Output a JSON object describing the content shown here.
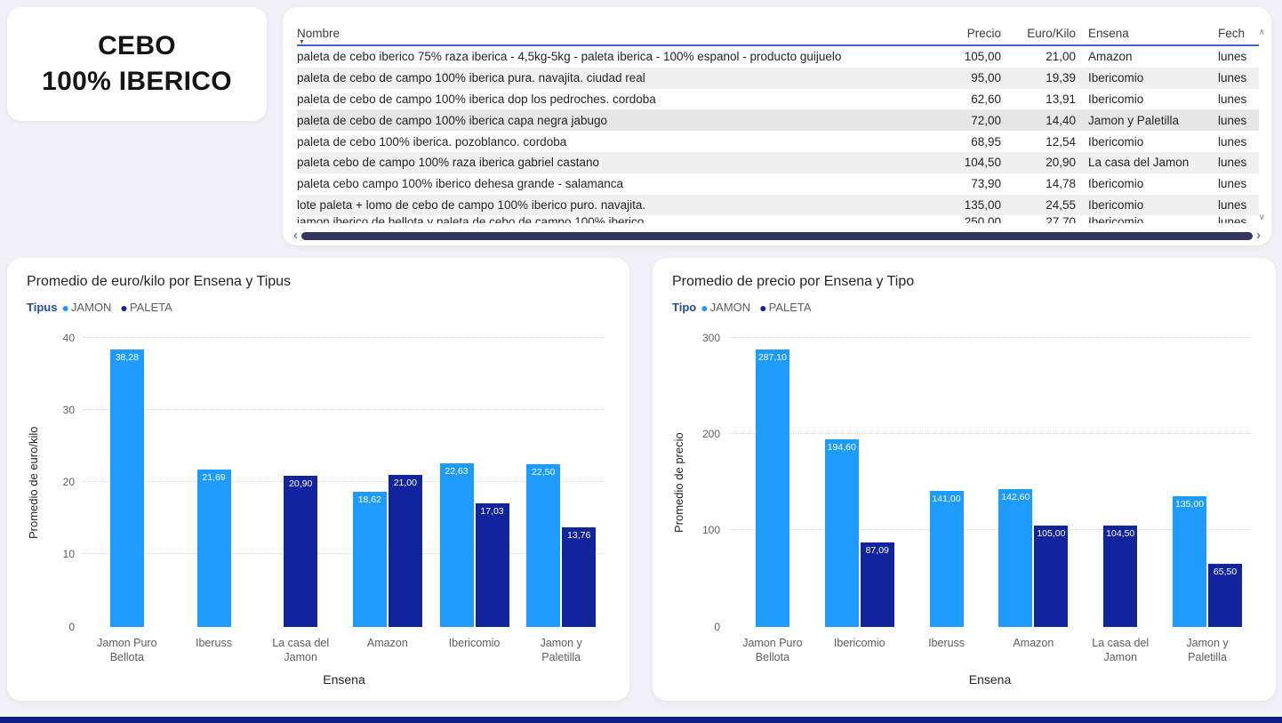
{
  "page": {
    "background": "#f2f1f7",
    "accent_bar_color": "#101d87"
  },
  "title_card": {
    "line1": "CEBO",
    "line2": "100% IBERICO"
  },
  "table": {
    "header": {
      "nombre": "Nombre",
      "precio": "Precio",
      "euro_kilo": "Euro/Kilo",
      "ensena": "Ensena",
      "fecha": "Fech"
    },
    "sort_icon": "▼",
    "rows": [
      {
        "nombre": "paleta de cebo iberico 75% raza iberica - 4,5kg-5kg - paleta iberica - 100% espanol - producto guijuelo",
        "precio": "105,00",
        "euro_kilo": "21,00",
        "ensena": "Amazon",
        "fecha": "lunes"
      },
      {
        "nombre": "paleta de cebo de campo 100% iberica pura. navajita. ciudad real",
        "precio": "95,00",
        "euro_kilo": "19,39",
        "ensena": "Ibericomio",
        "fecha": "lunes"
      },
      {
        "nombre": "paleta de cebo de campo 100% iberica dop los pedroches. cordoba",
        "precio": "62,60",
        "euro_kilo": "13,91",
        "ensena": "Ibericomio",
        "fecha": "lunes"
      },
      {
        "nombre": "paleta de cebo de campo 100% iberica capa negra jabugo",
        "precio": "72,00",
        "euro_kilo": "14,40",
        "ensena": "Jamon y Paletilla",
        "fecha": "lunes",
        "emphasis": true
      },
      {
        "nombre": "paleta de cebo 100% iberica. pozoblanco. cordoba",
        "precio": "68,95",
        "euro_kilo": "12,54",
        "ensena": "Ibericomio",
        "fecha": "lunes"
      },
      {
        "nombre": "paleta cebo de campo 100% raza iberica gabriel castano",
        "precio": "104,50",
        "euro_kilo": "20,90",
        "ensena": "La casa del Jamon",
        "fecha": "lunes"
      },
      {
        "nombre": "paleta cebo campo 100% iberico dehesa grande - salamanca",
        "precio": "73,90",
        "euro_kilo": "14,78",
        "ensena": "Ibericomio",
        "fecha": "lunes"
      },
      {
        "nombre": "lote paleta + lomo de cebo de campo 100% iberico puro. navajita.",
        "precio": "135,00",
        "euro_kilo": "24,55",
        "ensena": "Ibericomio",
        "fecha": "lunes"
      },
      {
        "nombre": "jamon iberico de bellota y paleta de cebo de campo 100% iberico",
        "precio": "250,00",
        "euro_kilo": "27,70",
        "ensena": "Ibericomio",
        "fecha": "lunes",
        "partial": true
      }
    ]
  },
  "chart_data": [
    {
      "type": "bar",
      "title": "Promedio de euro/kilo por Ensena y Tipus",
      "legend_title": "Tipus",
      "legend_position": "top",
      "grid": "dotted horizontal",
      "xlabel": "Ensena",
      "ylabel": "Promedio de euro/kilo",
      "ylim": [
        0,
        40
      ],
      "yticks": [
        0,
        10,
        20,
        30,
        40
      ],
      "categories": [
        "Jamon Puro Bellota",
        "Iberuss",
        "La casa del Jamon",
        "Amazon",
        "Ibericomio",
        "Jamon y Paletilla"
      ],
      "series": [
        {
          "name": "JAMON",
          "color": "#1e9bff"
        },
        {
          "name": "PALETA",
          "color": "#12239e"
        }
      ],
      "values": {
        "JAMON": [
          38.28,
          21.69,
          null,
          18.62,
          22.63,
          22.5
        ],
        "PALETA": [
          null,
          null,
          20.9,
          21.0,
          17.03,
          13.76
        ]
      },
      "labels": {
        "JAMON": [
          "38,28",
          "21,69",
          "",
          "18,62",
          "22,63",
          "22,50"
        ],
        "PALETA": [
          "",
          "",
          "20,90",
          "21,00",
          "17,03",
          "13,76"
        ]
      }
    },
    {
      "type": "bar",
      "title": "Promedio de precio por Ensena y Tipo",
      "legend_title": "Tipo",
      "legend_position": "top",
      "grid": "dotted horizontal",
      "xlabel": "Ensena",
      "ylabel": "Promedio de precio",
      "ylim": [
        0,
        300
      ],
      "yticks": [
        0,
        100,
        200,
        300
      ],
      "categories": [
        "Jamon Puro Bellota",
        "Ibericomio",
        "Iberuss",
        "Amazon",
        "La casa del Jamon",
        "Jamon y Paletilla"
      ],
      "series": [
        {
          "name": "JAMON",
          "color": "#1e9bff"
        },
        {
          "name": "PALETA",
          "color": "#12239e"
        }
      ],
      "values": {
        "JAMON": [
          287.1,
          194.6,
          141.0,
          142.6,
          null,
          135.0
        ],
        "PALETA": [
          null,
          87.09,
          null,
          105.0,
          104.5,
          65.5
        ]
      },
      "labels": {
        "JAMON": [
          "287,10",
          "194,60",
          "141,00",
          "142,60",
          "",
          "135,00"
        ],
        "PALETA": [
          "",
          "87,09",
          "",
          "105,00",
          "104,50",
          "65,50"
        ]
      }
    }
  ],
  "scrollbars": {
    "up_arrow": "∧",
    "down_arrow": "∨",
    "left_arrow": "‹",
    "right_arrow": "›"
  }
}
